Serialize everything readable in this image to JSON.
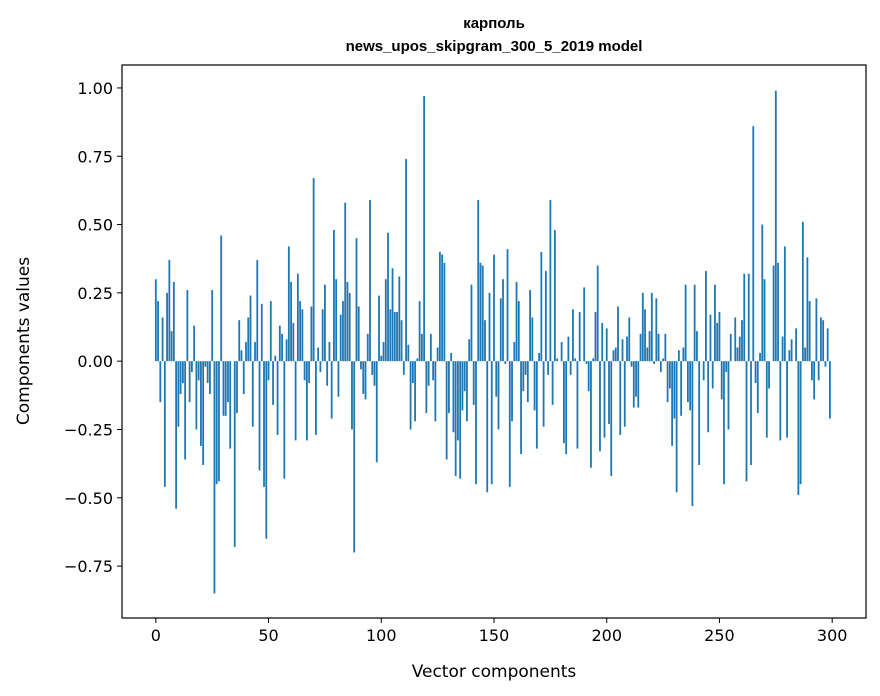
{
  "chart_data": {
    "type": "bar",
    "title_line1": "карполь",
    "title_line2": "news_upos_skipgram_300_5_2019 model",
    "xlabel": "Vector components",
    "ylabel": "Components values",
    "xlim": [
      -15,
      315
    ],
    "ylim": [
      -0.94,
      1.084
    ],
    "x_ticks": [
      0,
      50,
      100,
      150,
      200,
      250,
      300
    ],
    "x_tick_labels": [
      "0",
      "50",
      "100",
      "150",
      "200",
      "250",
      "300"
    ],
    "y_ticks": [
      -0.75,
      -0.5,
      -0.25,
      0,
      0.25,
      0.5,
      0.75,
      1.0
    ],
    "y_tick_labels": [
      "−0.75",
      "−0.50",
      "−0.25",
      "0.00",
      "0.25",
      "0.50",
      "0.75",
      "1.00"
    ],
    "grid": false,
    "bar_color": "#1f77b4",
    "values": [
      0.3,
      0.22,
      -0.15,
      0.16,
      -0.46,
      0.25,
      0.37,
      0.11,
      0.29,
      -0.54,
      -0.24,
      -0.12,
      -0.08,
      -0.36,
      0.26,
      -0.15,
      -0.04,
      0.13,
      -0.25,
      -0.07,
      -0.31,
      -0.38,
      -0.02,
      -0.08,
      -0.12,
      0.26,
      -0.85,
      -0.45,
      -0.44,
      0.46,
      -0.2,
      -0.2,
      -0.15,
      -0.32,
      0.0,
      -0.68,
      -0.19,
      0.15,
      0.04,
      -0.12,
      0.07,
      0.16,
      0.24,
      -0.24,
      0.07,
      0.37,
      -0.4,
      0.21,
      -0.46,
      -0.65,
      -0.07,
      0.22,
      -0.16,
      0.02,
      -0.27,
      0.13,
      0.1,
      -0.43,
      0.08,
      0.42,
      0.29,
      0.14,
      -0.29,
      0.32,
      0.22,
      0.19,
      -0.07,
      -0.29,
      -0.08,
      0.2,
      0.67,
      -0.27,
      0.05,
      -0.04,
      0.19,
      0.28,
      -0.09,
      0.07,
      -0.21,
      0.48,
      0.3,
      -0.13,
      0.17,
      0.22,
      0.58,
      0.29,
      0.25,
      -0.25,
      -0.7,
      0.45,
      0.2,
      -0.03,
      -0.12,
      -0.14,
      0.1,
      0.59,
      -0.05,
      -0.09,
      -0.37,
      0.24,
      0.02,
      0.07,
      0.3,
      0.47,
      0.19,
      0.34,
      0.18,
      0.18,
      0.31,
      0.15,
      -0.05,
      0.74,
      0.06,
      -0.25,
      -0.08,
      -0.22,
      0.01,
      0.22,
      0.1,
      0.97,
      -0.19,
      -0.09,
      0.1,
      -0.07,
      -0.22,
      0.05,
      0.4,
      0.39,
      0.36,
      -0.36,
      -0.19,
      0.03,
      -0.26,
      -0.42,
      -0.29,
      -0.43,
      -0.18,
      -0.11,
      -0.22,
      0.08,
      0.28,
      -0.16,
      -0.45,
      0.59,
      0.36,
      0.35,
      0.15,
      -0.48,
      0.25,
      -0.45,
      0.39,
      -0.13,
      -0.25,
      0.23,
      0.3,
      -0.01,
      0.41,
      -0.46,
      -0.22,
      0.07,
      0.29,
      0.22,
      -0.34,
      -0.11,
      -0.05,
      -0.15,
      0.26,
      0.16,
      -0.18,
      -0.32,
      0.03,
      0.4,
      -0.24,
      0.33,
      -0.05,
      0.59,
      -0.16,
      0.48,
      0.01,
      0.0,
      0.07,
      -0.3,
      -0.34,
      0.09,
      -0.05,
      0.19,
      0.01,
      -0.32,
      0.18,
      0.0,
      0.27,
      -0.01,
      -0.11,
      -0.39,
      0.01,
      0.18,
      0.35,
      -0.33,
      0.14,
      -0.28,
      0.12,
      -0.23,
      -0.42,
      0.04,
      0.05,
      0.2,
      -0.27,
      0.08,
      -0.24,
      0.09,
      0.16,
      -0.02,
      -0.17,
      -0.13,
      -0.17,
      0.1,
      0.25,
      0.19,
      0.05,
      0.11,
      0.25,
      -0.01,
      0.23,
      0.1,
      -0.04,
      0.01,
      0.1,
      -0.15,
      -0.1,
      -0.31,
      -0.21,
      -0.48,
      0.04,
      -0.2,
      0.05,
      0.28,
      -0.15,
      -0.18,
      -0.53,
      0.28,
      0.11,
      -0.38,
      0.0,
      -0.07,
      0.33,
      -0.26,
      0.17,
      -0.1,
      0.28,
      0.14,
      0.18,
      -0.14,
      -0.45,
      -0.04,
      -0.25,
      0.1,
      0.0,
      0.16,
      0.05,
      0.09,
      0.15,
      0.32,
      -0.44,
      0.32,
      -0.38,
      0.86,
      -0.08,
      -0.19,
      0.03,
      0.5,
      0.3,
      -0.28,
      -0.1,
      0.0,
      0.35,
      0.99,
      0.36,
      -0.29,
      0.09,
      0.42,
      -0.28,
      0.04,
      0.08,
      0.0,
      0.12,
      -0.49,
      -0.45,
      0.51,
      0.05,
      0.38,
      0.22,
      -0.07,
      -0.14,
      0.23,
      -0.07,
      0.16,
      0.15,
      -0.02,
      0.12,
      -0.21
    ]
  }
}
